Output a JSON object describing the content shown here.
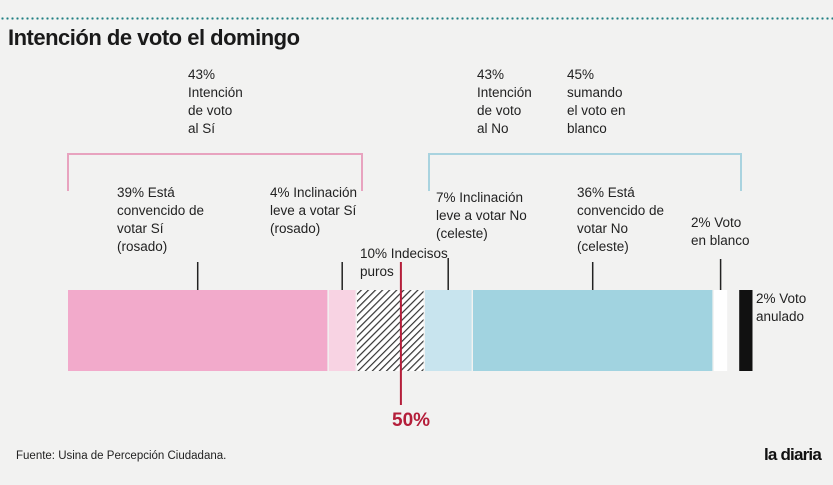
{
  "title": "Intención de voto el domingo",
  "source": "Fuente: Usina de Percepción Ciudadana.",
  "logo": "la diaria",
  "midpoint_label": "50%",
  "colors": {
    "si_convinced": "#f2aacb",
    "si_lean": "#f8d3e3",
    "undecided": "#333333",
    "no_lean": "#c8e4ee",
    "no_convinced": "#a1d3e0",
    "blank": "#ffffff",
    "annulled": "#111111",
    "midline": "#b41e3a",
    "bracket_si": "#e8a3bf",
    "bracket_no": "#a9d3df"
  },
  "groups": {
    "si": "43%\nIntención\nde voto\nal Sí",
    "no": "43%\nIntención\nde voto\nal No",
    "blank_sum": "45%\nsumando\nel voto en\nblanco"
  },
  "chart_data": {
    "type": "bar",
    "orientation": "horizontal-stacked",
    "unit": "%",
    "segments": [
      {
        "key": "si_convinced",
        "value": 39,
        "label": "39% Está\nconvencido de\nvotar Sí\n(rosado)"
      },
      {
        "key": "si_lean",
        "value": 4,
        "label": "4% Inclinación\nleve a votar Sí\n(rosado)"
      },
      {
        "key": "undecided",
        "value": 10,
        "label": "10% Indecisos\npuros"
      },
      {
        "key": "no_lean",
        "value": 7,
        "label": "7% Inclinación\nleve a votar No\n(celeste)"
      },
      {
        "key": "no_convinced",
        "value": 36,
        "label": "36% Está\nconvencido de\nvotar No\n(celeste)"
      },
      {
        "key": "blank",
        "value": 2,
        "label": "2% Voto\nen blanco"
      },
      {
        "key": "annulled",
        "value": 2,
        "label": "2% Voto\nanulado"
      }
    ],
    "midpoint": 50
  }
}
